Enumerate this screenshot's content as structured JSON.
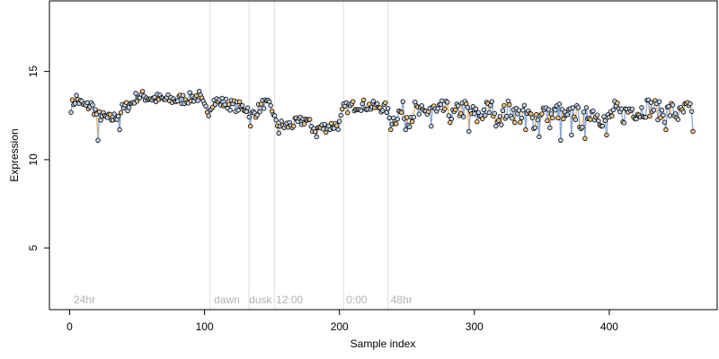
{
  "chart_data": {
    "type": "scatter",
    "title": "",
    "xlabel": "Sample index",
    "ylabel": "Expression",
    "xlim": [
      -15,
      480
    ],
    "ylim": [
      1.5,
      19
    ],
    "x_ticks": [
      0,
      100,
      200,
      300,
      400
    ],
    "y_ticks": [
      5,
      10,
      15
    ],
    "grid": false,
    "legend": "none",
    "colors": {
      "point_fill": "#c2d3e8",
      "point_fill_alt": "#f2c27a",
      "point_edge": "#000000",
      "line_blue": "#7da0d0",
      "line_orange": "#f0a84a",
      "divider": "#dddddd",
      "region_text": "#b3b3b3"
    },
    "dividers": [
      104,
      133,
      152,
      203,
      236
    ],
    "regions": [
      {
        "label": "24hr",
        "x": 3
      },
      {
        "label": "dawn",
        "x": 107
      },
      {
        "label": "dusk",
        "x": 133
      },
      {
        "label": "12:00",
        "x": 153
      },
      {
        "label": "0:00",
        "x": 205
      },
      {
        "label": "48hr",
        "x": 238
      }
    ],
    "profile": [
      [
        1,
        13.0
      ],
      [
        5,
        13.5
      ],
      [
        8,
        13.2
      ],
      [
        12,
        13.0
      ],
      [
        16,
        13.1
      ],
      [
        20,
        12.6
      ],
      [
        25,
        12.4
      ],
      [
        30,
        12.3
      ],
      [
        34,
        12.4
      ],
      [
        38,
        12.8
      ],
      [
        42,
        13.0
      ],
      [
        46,
        13.2
      ],
      [
        50,
        13.6
      ],
      [
        55,
        13.6
      ],
      [
        60,
        13.5
      ],
      [
        70,
        13.4
      ],
      [
        80,
        13.4
      ],
      [
        90,
        13.5
      ],
      [
        96,
        13.6
      ],
      [
        100,
        12.9
      ],
      [
        103,
        12.8
      ],
      [
        106,
        13.3
      ],
      [
        110,
        13.3
      ],
      [
        115,
        13.2
      ],
      [
        120,
        13.1
      ],
      [
        125,
        13.0
      ],
      [
        132,
        12.9
      ],
      [
        134,
        12.5
      ],
      [
        138,
        12.7
      ],
      [
        144,
        13.2
      ],
      [
        148,
        13.0
      ],
      [
        151,
        12.7
      ],
      [
        153,
        12.0
      ],
      [
        160,
        11.9
      ],
      [
        165,
        12.0
      ],
      [
        170,
        12.1
      ],
      [
        175,
        12.3
      ],
      [
        180,
        11.8
      ],
      [
        186,
        11.8
      ],
      [
        193,
        11.9
      ],
      [
        200,
        12.0
      ],
      [
        203,
        12.9
      ],
      [
        208,
        13.0
      ],
      [
        213,
        13.1
      ],
      [
        218,
        13.1
      ],
      [
        224,
        13.0
      ],
      [
        230,
        13.0
      ],
      [
        235,
        12.9
      ],
      [
        238,
        12.1
      ],
      [
        242,
        12.5
      ],
      [
        248,
        12.8
      ],
      [
        252,
        12.4
      ],
      [
        256,
        12.8
      ],
      [
        262,
        12.5
      ],
      [
        268,
        13.0
      ],
      [
        272,
        12.6
      ],
      [
        278,
        12.9
      ],
      [
        284,
        12.4
      ],
      [
        290,
        12.9
      ],
      [
        296,
        12.8
      ],
      [
        302,
        12.4
      ],
      [
        308,
        12.8
      ],
      [
        314,
        12.9
      ],
      [
        320,
        12.5
      ],
      [
        326,
        12.9
      ],
      [
        332,
        12.5
      ],
      [
        338,
        12.6
      ],
      [
        344,
        12.2
      ],
      [
        350,
        12.9
      ],
      [
        356,
        12.3
      ],
      [
        362,
        12.8
      ],
      [
        368,
        12.2
      ],
      [
        374,
        12.8
      ],
      [
        380,
        12.1
      ],
      [
        386,
        12.8
      ],
      [
        392,
        12.5
      ],
      [
        398,
        12.2
      ],
      [
        404,
        12.8
      ],
      [
        410,
        12.5
      ],
      [
        416,
        12.9
      ],
      [
        422,
        12.7
      ],
      [
        428,
        13.0
      ],
      [
        434,
        12.9
      ],
      [
        440,
        12.6
      ],
      [
        446,
        12.8
      ],
      [
        452,
        12.5
      ],
      [
        458,
        12.9
      ],
      [
        462,
        12.4
      ]
    ],
    "dips": [
      [
        21,
        11.1
      ],
      [
        37,
        11.7
      ],
      [
        134,
        11.9
      ],
      [
        155,
        11.5
      ],
      [
        183,
        11.3
      ],
      [
        238,
        11.7
      ],
      [
        249,
        11.7
      ],
      [
        268,
        11.9
      ],
      [
        296,
        11.6
      ],
      [
        316,
        11.9
      ],
      [
        338,
        11.7
      ],
      [
        348,
        11.3
      ],
      [
        364,
        11.1
      ],
      [
        372,
        11.4
      ],
      [
        382,
        11.2
      ],
      [
        398,
        11.4
      ],
      [
        442,
        11.7
      ],
      [
        462,
        11.6
      ]
    ]
  }
}
